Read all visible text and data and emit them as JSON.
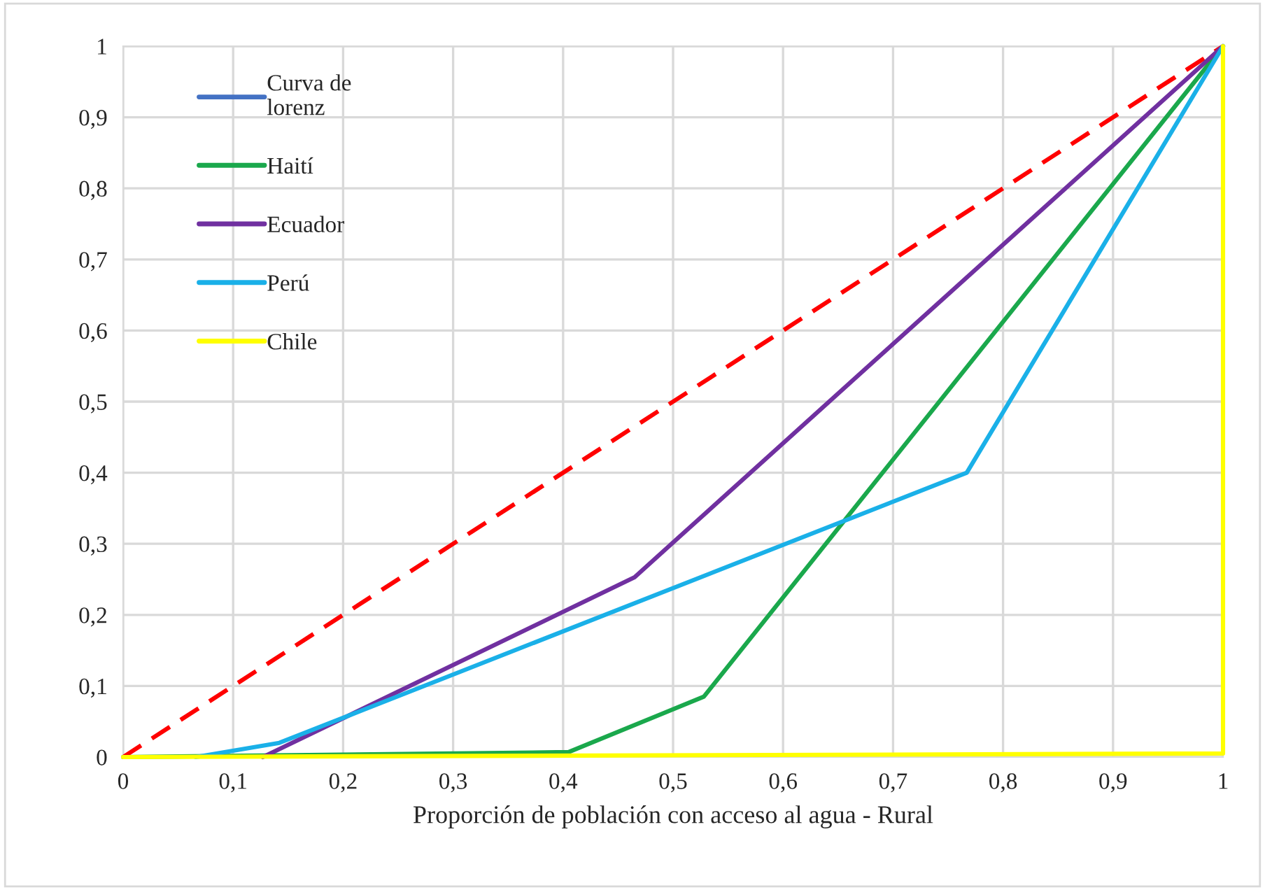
{
  "chart_data": {
    "type": "line",
    "xlabel": "Proporción de población con acceso al agua - Rural",
    "xlim": [
      0,
      1
    ],
    "ylim": [
      0,
      1
    ],
    "xticks": [
      0,
      {
        "value": 0.1,
        "label": "0,1"
      },
      {
        "value": 0.2,
        "label": "0,2"
      },
      {
        "value": 0.3,
        "label": "0,3"
      },
      {
        "value": 0.4,
        "label": "0,4"
      },
      {
        "value": 0.5,
        "label": "0,5"
      },
      {
        "value": 0.6,
        "label": "0,6"
      },
      {
        "value": 0.7,
        "label": "0,7"
      },
      {
        "value": 0.8,
        "label": "0,8"
      },
      {
        "value": 0.9,
        "label": "0,9"
      },
      1
    ],
    "yticks": [
      0,
      {
        "value": 0.1,
        "label": "0,1"
      },
      {
        "value": 0.2,
        "label": "0,2"
      },
      {
        "value": 0.3,
        "label": "0,3"
      },
      {
        "value": 0.4,
        "label": "0,4"
      },
      {
        "value": 0.5,
        "label": "0,5"
      },
      {
        "value": 0.6,
        "label": "0,6"
      },
      {
        "value": 0.7,
        "label": "0,7"
      },
      {
        "value": 0.8,
        "label": "0,8"
      },
      {
        "value": 0.9,
        "label": "0,9"
      },
      1
    ],
    "grid": true,
    "legend": "top left",
    "marker": "none",
    "series": [
      {
        "color": "#ff0000",
        "line_style": "dashed",
        "x": [
          0,
          1
        ],
        "values": [
          0,
          1
        ]
      },
      {
        "name": "Curva de\nlorenz",
        "color": "#4472c4"
      },
      {
        "name": "Haití",
        "color": "#1aa84c",
        "x": [
          0,
          0.405,
          0.528,
          1
        ],
        "values": [
          0,
          0.007,
          0.085,
          1
        ]
      },
      {
        "name": "Ecuador",
        "color": "#7030a0",
        "x": [
          0.127,
          0.465,
          1
        ],
        "values": [
          0,
          0.253,
          1
        ]
      },
      {
        "name": "Perú",
        "color": "#1ab0e8",
        "x": [
          0.066,
          0.142,
          0.767,
          1
        ],
        "values": [
          0,
          0.02,
          0.4,
          1
        ]
      },
      {
        "name": "Chile",
        "color": "#ffff00",
        "x": [
          0,
          1,
          1
        ],
        "values": [
          0,
          0.005,
          1
        ]
      }
    ]
  }
}
